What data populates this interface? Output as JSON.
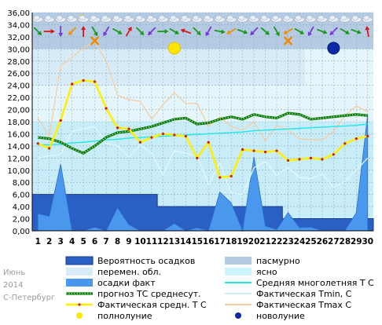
{
  "footer": {
    "month": "Июнь",
    "year": "2014",
    "city": "С-Петербург"
  },
  "colors": {
    "plot_bg": "#c8ecf8",
    "cloudy_band": "#b5cbe4",
    "variable_band": "#d8ecf8",
    "clear_band": "#e4f6fb",
    "precip_prob": "#2a5fc4",
    "precip_prob_edge": "#1a3a8c",
    "precip_fact": "#4a98ee",
    "forecast_line": "#0a7a0a",
    "avg_line": "#20e8e8",
    "fact_avg_line": "#fff000",
    "tmin_line": "#e4f8ff",
    "tmax_line": "#f6cda0",
    "full_moon": "#ffe600",
    "new_moon": "#0a2aa8"
  },
  "chart_data": {
    "type": "line",
    "title": "",
    "xlabel": "",
    "ylabel": "",
    "x": [
      1,
      2,
      3,
      4,
      5,
      6,
      7,
      8,
      9,
      10,
      11,
      12,
      13,
      14,
      15,
      16,
      17,
      18,
      19,
      20,
      21,
      22,
      23,
      24,
      25,
      26,
      27,
      28,
      29,
      30
    ],
    "x_tick_labels": [
      "1",
      "2",
      "3",
      "4",
      "5",
      "6",
      "7",
      "8",
      "9",
      "10",
      "11",
      "12",
      "13",
      "14",
      "15",
      "16",
      "17",
      "18",
      "19",
      "20",
      "21",
      "22",
      "23",
      "24",
      "25",
      "26",
      "27",
      "28",
      "29",
      "30"
    ],
    "ylim": [
      0,
      36
    ],
    "y_ticks": [
      "0,00",
      "2,00",
      "4,00",
      "6,00",
      "8,00",
      "10,00",
      "12,00",
      "14,00",
      "16,00",
      "18,00",
      "20,00",
      "22,00",
      "24,00",
      "26,00",
      "28,00",
      "30,00",
      "32,00",
      "34,00",
      "36,00"
    ],
    "grid": true,
    "sky_bands": [
      {
        "name": "пасмурно",
        "from": 30,
        "to": 36
      },
      {
        "name": "перемен. обл.",
        "from": 24,
        "to": 30
      },
      {
        "name": "ясно",
        "from": 18,
        "to": 24
      }
    ],
    "series": [
      {
        "name": "Вероятность осадков",
        "kind": "step_area",
        "values": [
          6,
          6,
          6,
          6,
          6,
          6,
          6,
          6,
          6,
          6,
          6,
          4,
          4,
          4,
          4,
          4,
          4,
          4,
          4,
          4,
          4,
          4,
          2,
          2,
          2,
          2,
          2,
          2,
          2,
          2
        ]
      },
      {
        "name": "осадки факт",
        "kind": "area",
        "values": [
          2.8,
          2.4,
          11,
          0,
          0,
          0.6,
          0,
          3.8,
          1,
          0,
          0,
          0,
          1.2,
          0,
          0.5,
          0,
          6.4,
          4.6,
          0,
          12.2,
          0.8,
          0.2,
          3,
          0.5,
          0.6,
          0,
          0,
          0,
          3,
          19.2
        ]
      },
      {
        "name": "Фактическая Tmax С",
        "kind": "line",
        "values": [
          18.6,
          15.6,
          27.2,
          28.6,
          30.2,
          31.2,
          28,
          22.4,
          21.6,
          21.4,
          18.4,
          20.8,
          22.8,
          21,
          21,
          17.2,
          18.8,
          17.2,
          16.6,
          18,
          14.8,
          17.4,
          16.6,
          15.2,
          15,
          15,
          16.4,
          19,
          20.6,
          19.6
        ]
      },
      {
        "name": "Фактическая Tmin, С",
        "kind": "line",
        "values": [
          12,
          12.4,
          12.6,
          16.4,
          16.8,
          17.2,
          14.4,
          14,
          12.2,
          14.2,
          12.8,
          9.2,
          13.2,
          12.8,
          12.4,
          7.6,
          11.2,
          6.2,
          6,
          10.4,
          11.4,
          9.2,
          10.4,
          8.8,
          8.6,
          9.4,
          7.2,
          8.2,
          10,
          12
        ]
      },
      {
        "name": "Средняя многолетняя Т С",
        "kind": "line",
        "values": [
          14.2,
          14.2,
          14.3,
          14.5,
          14.6,
          14.8,
          15,
          15.1,
          15.3,
          15.4,
          15.5,
          15.6,
          15.7,
          15.8,
          15.9,
          16,
          16.1,
          16.2,
          16.3,
          16.5,
          16.6,
          16.7,
          16.8,
          16.9,
          17,
          17.1,
          17.2,
          17.3,
          17.4,
          17.6
        ]
      },
      {
        "name": "прогноз ТС среднесут.",
        "kind": "dotted_line",
        "values": [
          15.4,
          15.2,
          14.6,
          13.6,
          12.8,
          14,
          15.4,
          16.2,
          16.4,
          16.8,
          17.2,
          17.8,
          18.4,
          18.6,
          17.6,
          17.8,
          18.4,
          18.8,
          18.4,
          19.2,
          18.8,
          18.6,
          19.4,
          19.2,
          18.4,
          18.6,
          18.8,
          19,
          19.2,
          19
        ]
      },
      {
        "name": "Фактическая средн. Т С",
        "kind": "line",
        "values": [
          14.4,
          13.6,
          18.2,
          24.2,
          24.8,
          24.6,
          20.2,
          17,
          16.8,
          14.6,
          15.4,
          16,
          15.8,
          15.6,
          12,
          14.6,
          8.8,
          9,
          13.4,
          13.2,
          13,
          13.2,
          11.6,
          11.8,
          12,
          11.8,
          12.6,
          14.4,
          15.2,
          15.6
        ]
      }
    ],
    "moon_phases": [
      {
        "name": "полнолуние",
        "day": 13,
        "y": 30
      },
      {
        "name": "новолуние",
        "day": 27,
        "y": 30
      }
    ],
    "weather_icons": [
      "cloud",
      "cloud",
      "cloud",
      "cloud",
      "sun-cloud",
      "cloud",
      "cloud",
      "cloud",
      "cloud",
      "cloud",
      "cloud",
      "cloud",
      "cloud",
      "cloud",
      "cloud",
      "cloud",
      "cloud",
      "cloud",
      "cloud",
      "cloud",
      "cloud",
      "cloud",
      "cloud",
      "cloud",
      "cloud",
      "cloud",
      "cloud",
      "cloud",
      "cloud",
      "cloud"
    ],
    "legend": {
      "placement": "bottom",
      "entries": [
        {
          "label": "Вероятность осадков",
          "swatch": "box-dark"
        },
        {
          "label": "пасмурно",
          "swatch": "box-cloudy"
        },
        {
          "label": "перемен. обл.",
          "swatch": "box-variable"
        },
        {
          "label": "ясно",
          "swatch": "box-clear"
        },
        {
          "label": "осадки факт",
          "swatch": "box-precip"
        },
        {
          "label": "Средняя многолетняя Т С",
          "swatch": "line-avg"
        },
        {
          "label": "прогноз ТС среднесут.",
          "swatch": "line-forecast"
        },
        {
          "label": "Фактическая Tmin, С",
          "swatch": "line-tmin"
        },
        {
          "label": "Фактическая средн. Т С",
          "swatch": "line-fact"
        },
        {
          "label": "Фактическая Tmax С",
          "swatch": "line-tmax"
        },
        {
          "label": "полнолуние",
          "swatch": "dot-full"
        },
        {
          "label": "новолуние",
          "swatch": "dot-new"
        }
      ]
    }
  }
}
